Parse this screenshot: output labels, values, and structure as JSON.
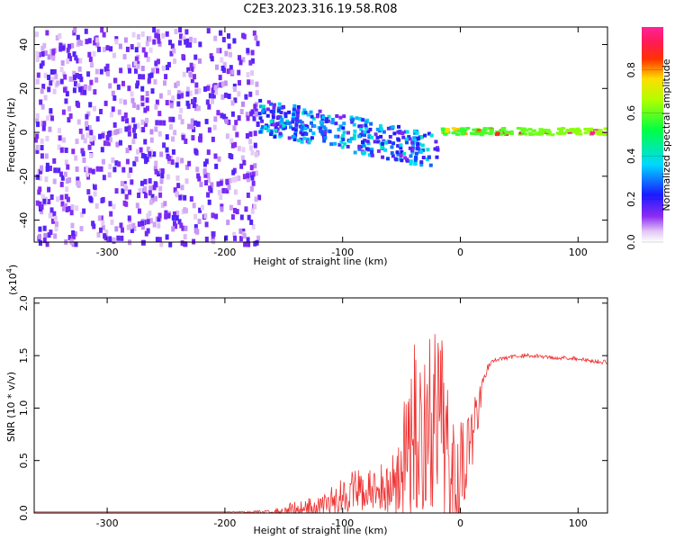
{
  "title": "C2E3.2023.316.19.58.R08",
  "chart_data": [
    {
      "type": "heatmap",
      "title": "C2E3.2023.316.19.58.R08",
      "xlabel": "Height of straight line (km)",
      "ylabel": "Frequency (Hz)",
      "xlim": [
        -362,
        125
      ],
      "ylim": [
        -50,
        48
      ],
      "xticks": [
        "-300",
        "-200",
        "-100",
        "0",
        "100"
      ],
      "xtick_values": [
        -300,
        -200,
        -100,
        0,
        100
      ],
      "yticks": [
        "40",
        "20",
        "0",
        "-20",
        "-40"
      ],
      "ytick_values": [
        40,
        20,
        0,
        -20,
        -40
      ],
      "colorbar": {
        "label": "Normalized spectral amplitude",
        "range": [
          0,
          1
        ],
        "ticks": [
          "0.0",
          "0.2",
          "0.4",
          "0.6",
          "0.8"
        ],
        "tick_values": [
          0.0,
          0.2,
          0.4,
          0.6,
          0.8
        ],
        "colormap": "white-purple-blue-cyan-green-yellow-red-magenta"
      },
      "regions": [
        {
          "name": "noise",
          "x": [
            -362,
            -172
          ],
          "freq": [
            -50,
            48
          ],
          "amplitude": 0.15
        },
        {
          "name": "clutter",
          "x": [
            -172,
            -20
          ],
          "freq_center": [
            8,
            -8
          ],
          "freq_width": 10,
          "amplitude": 0.3
        },
        {
          "name": "ridge",
          "x": [
            -20,
            125
          ],
          "freq_center": 1,
          "amplitude": [
            0.5,
            0.95
          ]
        }
      ]
    },
    {
      "type": "line",
      "xlabel": "Height of straight line (km)",
      "ylabel": "SNR (10 * v/v)",
      "multiplier_label": "(x10",
      "multiplier_exp": "4",
      "xlim": [
        -362,
        125
      ],
      "ylim": [
        0,
        2.05
      ],
      "xticks": [
        "-300",
        "-200",
        "-100",
        "0",
        "100"
      ],
      "xtick_values": [
        -300,
        -200,
        -100,
        0,
        100
      ],
      "yticks": [
        "0.0",
        "0.5",
        "1.0",
        "1.5",
        "2.0"
      ],
      "ytick_values": [
        0.0,
        0.5,
        1.0,
        1.5,
        2.0
      ],
      "series": [
        {
          "name": "SNR",
          "color": "#ee3333",
          "x": [
            -362,
            -300,
            -200,
            -160,
            -150,
            -140,
            -120,
            -110,
            -100,
            -90,
            -80,
            -70,
            -60,
            -50,
            -45,
            -40,
            -30,
            -20,
            -15,
            -10,
            0,
            5,
            10,
            15,
            20,
            25,
            30,
            40,
            50,
            60,
            70,
            80,
            90,
            100,
            110,
            120,
            125
          ],
          "y": [
            0.01,
            0.01,
            0.01,
            0.01,
            0.02,
            0.04,
            0.06,
            0.1,
            0.18,
            0.22,
            0.2,
            0.22,
            0.25,
            0.4,
            0.55,
            0.7,
            0.85,
            0.8,
            0.75,
            0.6,
            0.55,
            0.6,
            0.7,
            1.0,
            1.3,
            1.42,
            1.46,
            1.48,
            1.5,
            1.5,
            1.49,
            1.48,
            1.48,
            1.47,
            1.45,
            1.44,
            1.44
          ],
          "noise_amplitude": [
            0.0,
            0.0,
            0.0,
            0.02,
            0.06,
            0.08,
            0.1,
            0.14,
            0.18,
            0.2,
            0.2,
            0.22,
            0.3,
            0.5,
            0.7,
            0.9,
            1.0,
            0.9,
            0.9,
            0.8,
            0.6,
            0.5,
            0.4,
            0.2,
            0.06,
            0.03,
            0.02,
            0.02,
            0.02,
            0.02,
            0.02,
            0.02,
            0.02,
            0.02,
            0.02,
            0.02,
            0.02
          ]
        }
      ]
    }
  ]
}
